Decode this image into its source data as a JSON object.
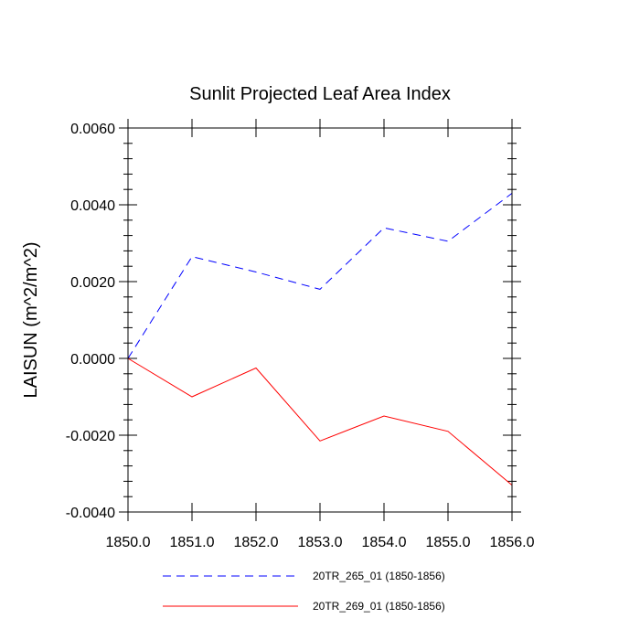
{
  "chart_data": {
    "type": "line",
    "title": "Sunlit Projected Leaf Area Index",
    "xlabel": "",
    "ylabel": "LAISUN  (m^2/m^2)",
    "x": [
      1850,
      1851,
      1852,
      1853,
      1854,
      1855,
      1856
    ],
    "xlim": [
      1850,
      1856
    ],
    "ylim": [
      -0.004,
      0.006
    ],
    "xticks": [
      1850,
      1851,
      1852,
      1853,
      1854,
      1855,
      1856
    ],
    "xtick_labels": [
      "1850.0",
      "1851.0",
      "1852.0",
      "1853.0",
      "1854.0",
      "1855.0",
      "1856.0"
    ],
    "yticks": [
      -0.004,
      -0.002,
      0.0,
      0.002,
      0.004,
      0.006
    ],
    "ytick_labels": [
      "-0.0040",
      "-0.0020",
      "0.0000",
      "0.0020",
      "0.0040",
      "0.0060"
    ],
    "grid": false,
    "legend_position": "bottom",
    "series": [
      {
        "name": "20TR_265_01 (1850-1856)",
        "color": "#0000ff",
        "style": "dashed",
        "values": [
          0.0,
          0.00265,
          0.00225,
          0.0018,
          0.0034,
          0.00305,
          0.0043
        ]
      },
      {
        "name": "20TR_269_01 (1850-1856)",
        "color": "#ff0000",
        "style": "solid",
        "values": [
          0.0,
          -0.001,
          -0.00025,
          -0.00215,
          -0.0015,
          -0.0019,
          -0.0033
        ]
      }
    ]
  }
}
